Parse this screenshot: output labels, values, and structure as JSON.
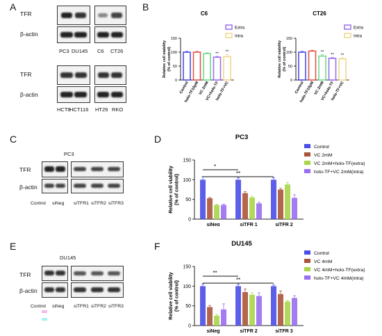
{
  "panels": {
    "A": {
      "letter": "A",
      "blot_top": {
        "rows": [
          "TFR",
          "β-actin"
        ],
        "lanes": [
          "PC3",
          "DU145",
          "C6",
          "CT26"
        ]
      },
      "blot_bottom": {
        "rows": [
          "TFR",
          "β-actin"
        ],
        "lanes": [
          "HCT8",
          "HCT116",
          "HT29",
          "RKO"
        ]
      }
    },
    "B": {
      "letter": "B"
    },
    "C": {
      "letter": "C",
      "blot": {
        "cell_line": "PC3",
        "rows": [
          "TFR",
          "β-actin"
        ],
        "lanes": [
          "Control",
          "siNeg",
          "siTFR1",
          "siTFR2",
          "siTFR3"
        ]
      }
    },
    "D": {
      "letter": "D"
    },
    "E": {
      "letter": "E",
      "blot": {
        "cell_line": "DU145",
        "rows": [
          "TFR",
          "β-actin"
        ],
        "lanes": [
          "Control",
          "siNeg",
          "siTFR1",
          "siTFR2",
          "siTFR3"
        ]
      }
    },
    "F": {
      "letter": "F"
    }
  },
  "colors": {
    "blue": "#4a4ee6",
    "brown": "#a8553a",
    "lime": "#a8d64a",
    "purple": "#9a6ef0",
    "red": "#e2564a",
    "green": "#6dd98e",
    "extra": "#9a6ef0",
    "intra": "#f0d58a"
  },
  "chart_data": [
    {
      "id": "B-C6",
      "type": "bar",
      "title": "C6",
      "ylabel": "Relative cell viability\n(% of control)",
      "ylim": [
        0,
        150
      ],
      "yticks": [
        0,
        50,
        100,
        150
      ],
      "categories": [
        "Control",
        "holo-TF10μM",
        "VC 2mM",
        "VC+holo-TF",
        "holo-TF+VC"
      ],
      "values": [
        100,
        100,
        95,
        82,
        84
      ],
      "errors": [
        3,
        3,
        3,
        3,
        8
      ],
      "bar_colors": [
        "blue",
        "red",
        "green",
        "purple",
        "intra"
      ],
      "annotations": [
        "",
        "",
        "",
        "**",
        "**"
      ],
      "legend": [
        "Extra",
        "Intra"
      ],
      "legend_colors": [
        "extra",
        "intra"
      ],
      "legend_position": "top-right"
    },
    {
      "id": "B-CT26",
      "type": "bar",
      "title": "CT26",
      "ylabel": "Relative cell viability\n(% of control)",
      "ylim": [
        0,
        150
      ],
      "yticks": [
        0,
        50,
        100,
        150
      ],
      "categories": [
        "Control",
        "holo-TF10μM",
        "VC 2mM",
        "VC+holo-TF",
        "holo-TF+VC"
      ],
      "values": [
        100,
        104,
        86,
        78,
        76
      ],
      "errors": [
        3,
        3,
        5,
        3,
        4
      ],
      "bar_colors": [
        "blue",
        "red",
        "green",
        "purple",
        "intra"
      ],
      "annotations": [
        "",
        "",
        "**",
        "**",
        "**"
      ],
      "legend": [
        "Extra",
        "Intra"
      ],
      "legend_colors": [
        "extra",
        "intra"
      ],
      "legend_position": "top-right"
    },
    {
      "id": "D-PC3",
      "type": "bar",
      "title": "PC3",
      "ylabel": "Relative cell viability\n(% of control)",
      "ylim": [
        0,
        150
      ],
      "yticks": [
        0,
        50,
        100,
        150
      ],
      "categories": [
        "siNeg",
        "siTFR 1",
        "siTFR 2"
      ],
      "series": [
        {
          "name": "Control",
          "color": "blue",
          "values": [
            100,
            100,
            100
          ],
          "errors": [
            8,
            5,
            5
          ]
        },
        {
          "name": "VC 2mM",
          "color": "brown",
          "values": [
            53,
            66,
            75
          ],
          "errors": [
            2,
            4,
            3
          ]
        },
        {
          "name": "VC 2mM+holo-TF(extra)",
          "color": "lime",
          "values": [
            36,
            55,
            88
          ],
          "errors": [
            2,
            3,
            5
          ]
        },
        {
          "name": "holo-TF+VC 2mM(intra)",
          "color": "purple",
          "values": [
            36,
            40,
            54
          ],
          "errors": [
            2,
            3,
            8
          ]
        }
      ],
      "significance": [
        {
          "from": "siNeg",
          "to": "siTFR 1",
          "label": "*"
        },
        {
          "from": "siNeg",
          "to": "siTFR 2",
          "label": "**"
        }
      ],
      "legend_position": "right"
    },
    {
      "id": "F-DU145",
      "type": "bar",
      "title": "DU145",
      "ylabel": "Relative cell viability\n(% of control)",
      "ylim": [
        0,
        150
      ],
      "yticks": [
        0,
        50,
        100,
        150
      ],
      "categories": [
        "siNeg",
        "siTFR 2",
        "siTFR 3"
      ],
      "series": [
        {
          "name": "Control",
          "color": "blue",
          "values": [
            100,
            100,
            100
          ],
          "errors": [
            6,
            5,
            3
          ]
        },
        {
          "name": "VC 4mM",
          "color": "brown",
          "values": [
            47,
            85,
            80
          ],
          "errors": [
            4,
            8,
            8
          ]
        },
        {
          "name": "VC 4mM+holo-TF(extra)",
          "color": "lime",
          "values": [
            25,
            78,
            61
          ],
          "errors": [
            3,
            5,
            3
          ]
        },
        {
          "name": "holo-TF+VC 4mM(intra)",
          "color": "purple",
          "values": [
            41,
            75,
            70
          ],
          "errors": [
            14,
            8,
            6
          ]
        }
      ],
      "significance": [
        {
          "from": "siNeg",
          "to": "siTFR 2",
          "label": "**"
        },
        {
          "from": "siNeg",
          "to": "siTFR 3",
          "label": "**"
        }
      ],
      "legend_position": "right"
    }
  ]
}
